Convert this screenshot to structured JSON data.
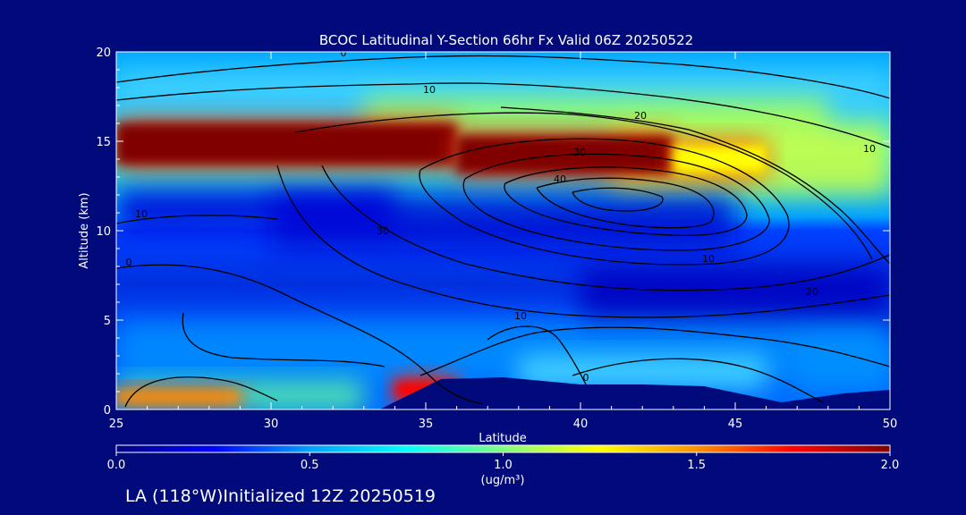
{
  "chart_data": {
    "type": "heatmap",
    "title": "BCOC Latitudinal Y-Section 66hr  Fx Valid 06Z 20250522",
    "xlabel": "Latitude",
    "ylabel": "Altitude (km)",
    "xlim": [
      25,
      50
    ],
    "ylim": [
      0,
      20
    ],
    "x_ticks": [
      "25",
      "30",
      "35",
      "40",
      "45",
      "50"
    ],
    "y_ticks": [
      "0",
      "5",
      "10",
      "15",
      "20"
    ],
    "colorbar": {
      "ticks": [
        "0.0",
        "0.5",
        "1.0",
        "1.5",
        "2.0"
      ],
      "range": [
        0,
        2
      ],
      "unit_label": "(ug/m³)"
    },
    "footer": "LA (118°W)Initialized 12Z 20250519",
    "contour_labels": [
      "0",
      "10",
      "20",
      "30",
      "40",
      "10",
      "10",
      "30",
      "10",
      "0",
      "10",
      "20",
      "0"
    ],
    "bc_layers": [
      {
        "lat": [
          25,
          36
        ],
        "alt": [
          13.5,
          16.2
        ],
        "value": 2.0
      },
      {
        "lat": [
          36,
          43
        ],
        "alt": [
          13.0,
          15.5
        ],
        "value": 1.9
      },
      {
        "lat": [
          43,
          46
        ],
        "alt": [
          13.0,
          15.0
        ],
        "value": 1.2
      },
      {
        "lat": [
          25,
          29
        ],
        "alt": [
          0.2,
          1.2
        ],
        "value": 1.4
      },
      {
        "lat": [
          34,
          36
        ],
        "alt": [
          0.4,
          1.8
        ],
        "value": 1.8
      }
    ],
    "terrain": {
      "lat": [
        25,
        32,
        33.5,
        35.5,
        37.5,
        40,
        42,
        44,
        46.5,
        48.5,
        50
      ],
      "alt": [
        0,
        0,
        0,
        1.7,
        1.8,
        1.4,
        1.4,
        1.3,
        0.4,
        0.9,
        1.1
      ]
    },
    "colors": {
      "background": "#000a7a",
      "scale": [
        "#00007f",
        "#0000ff",
        "#00a0ff",
        "#00ffff",
        "#80ff80",
        "#ffff00",
        "#ff9000",
        "#ff0000",
        "#800000"
      ]
    }
  }
}
